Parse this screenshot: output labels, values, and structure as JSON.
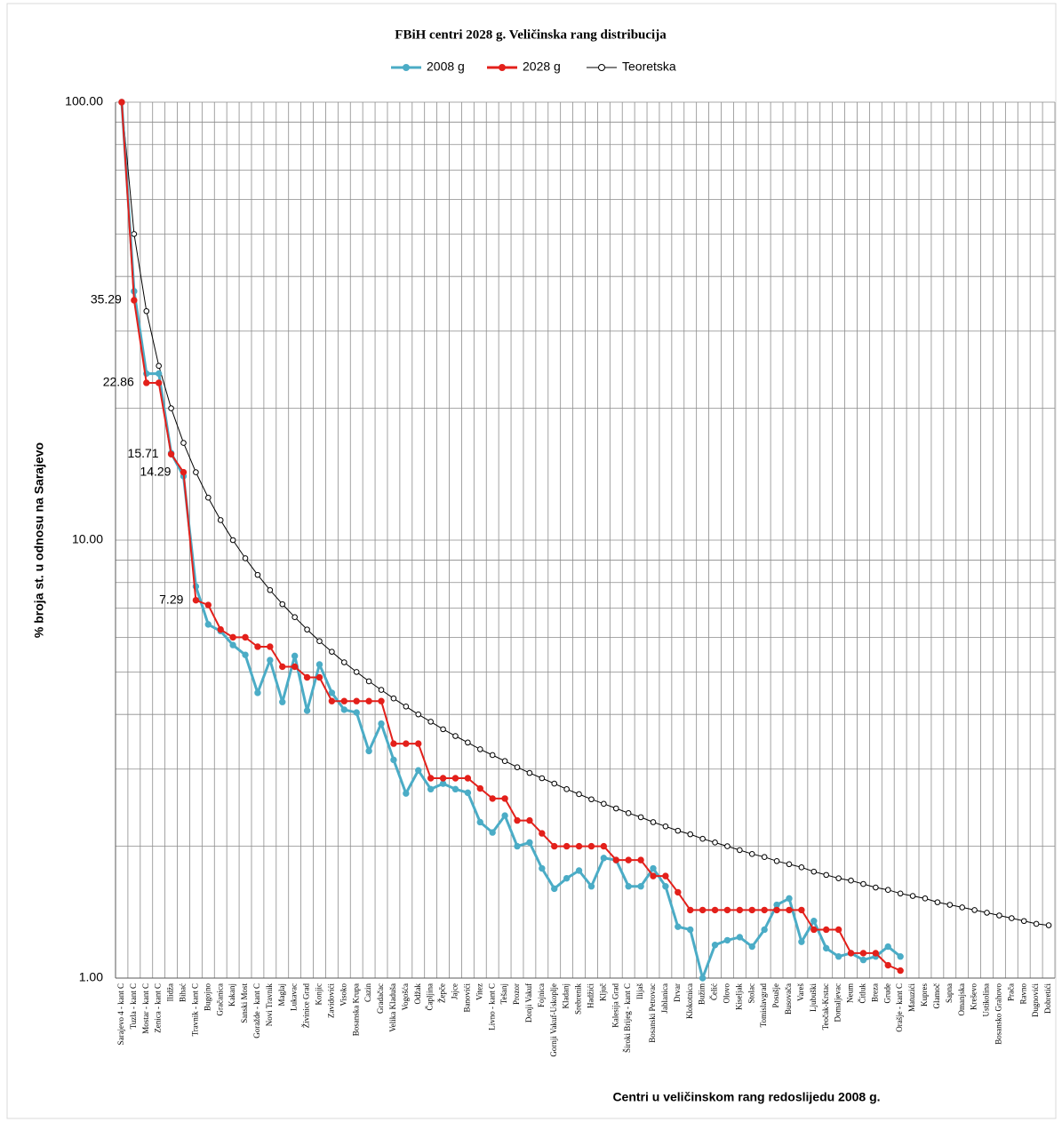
{
  "chart_data": {
    "type": "line",
    "title": "FBiH centri 2028 g. Veličinska rang distribucija",
    "x_label": "Centri u veličinskom rang redoslijedu 2008 g.",
    "y_label": "% broja st. u odnosu na Sarajevo",
    "log_scale": true,
    "grid": true,
    "legend": "top",
    "ylim": [
      1,
      100
    ],
    "yticks": [
      {
        "value": 1,
        "label": "1.00"
      },
      {
        "value": 10,
        "label": "10.00"
      },
      {
        "value": 100,
        "label": "100.00"
      }
    ],
    "categories": [
      "Sarajevo 4 - kant C",
      "Tuzla - kant C",
      "Mostar - kant C",
      "Zenica - kant C",
      "Ilidža",
      "Bihać",
      "Travnik - kant C",
      "Bugojno",
      "Gračanica",
      "Kakanj",
      "Sanski Most",
      "Goražde - kant C",
      "Novi Travnik",
      "Maglaj",
      "Lukavac",
      "Živinice Grad",
      "Konjic",
      "Zavidovići",
      "Visoko",
      "Bosanska Krupa",
      "Cazin",
      "Gradačac",
      "Velika Kladuša",
      "Vogošća",
      "Odžak",
      "Čapljina",
      "Žepče",
      "Jajce",
      "Banovići",
      "Vitez",
      "Livno - kant C",
      "Tešanj",
      "Prozor",
      "Donji Vakuf",
      "Fojnica",
      "Gornji Vakuf-Uskoplje",
      "Kladanj",
      "Srebrenik",
      "Hadžići",
      "Ključ",
      "Kalesija Grad",
      "Široki Brijeg - kant C",
      "Ilijaš",
      "Bosanski Petrovac",
      "Jablanica",
      "Drvar",
      "Klokotnica",
      "Bužim",
      "Čelić",
      "Olovo",
      "Kiseljak",
      "Stolac",
      "Tomislavgrad",
      "Posušje",
      "Busovača",
      "Vareš",
      "Ljubuški",
      "Teočak-Krstac",
      "Domaljevac",
      "Neum",
      "Čitluk",
      "Breza",
      "Grude",
      "Orašje - kant C",
      "Matuzići",
      "Kupres",
      "Glamoč",
      "Sapna",
      "Omanjska",
      "Kreševo",
      "Ustikolina",
      "Bosansko Grahovo",
      "Prača",
      "Ravno",
      "Dugnovići",
      "Dobretići"
    ],
    "series": [
      {
        "name": "2008 g",
        "color": "#4bacc6",
        "values": [
          100,
          37,
          24,
          24,
          15.8,
          14,
          7.84,
          6.42,
          6.2,
          5.76,
          5.47,
          4.48,
          5.32,
          4.27,
          5.44,
          4.08,
          5.2,
          4.48,
          4.1,
          4.04,
          3.3,
          3.81,
          3.15,
          2.64,
          2.98,
          2.7,
          2.78,
          2.7,
          2.65,
          2.27,
          2.15,
          2.35,
          2,
          2.04,
          1.78,
          1.6,
          1.69,
          1.76,
          1.62,
          1.88,
          1.86,
          1.62,
          1.62,
          1.78,
          1.62,
          1.31,
          1.29,
          1,
          1.19,
          1.22,
          1.24,
          1.18,
          1.29,
          1.47,
          1.52,
          1.21,
          1.35,
          1.17,
          1.12,
          1.14,
          1.1,
          1.12,
          1.18,
          1.12,
          null,
          null,
          null,
          null,
          null,
          null,
          null,
          null,
          null,
          null,
          null,
          null
        ]
      },
      {
        "name": "2028 g",
        "color": "#e3201b",
        "values": [
          100,
          35.29,
          22.86,
          22.86,
          15.71,
          14.29,
          7.29,
          7.11,
          6.25,
          6,
          6,
          5.71,
          5.71,
          5.14,
          5.14,
          4.86,
          4.86,
          4.29,
          4.29,
          4.29,
          4.29,
          4.29,
          3.43,
          3.43,
          3.43,
          2.86,
          2.86,
          2.86,
          2.86,
          2.71,
          2.57,
          2.57,
          2.29,
          2.29,
          2.14,
          2,
          2,
          2,
          2,
          2,
          1.86,
          1.86,
          1.86,
          1.71,
          1.71,
          1.57,
          1.43,
          1.43,
          1.43,
          1.43,
          1.43,
          1.43,
          1.43,
          1.43,
          1.43,
          1.43,
          1.29,
          1.29,
          1.29,
          1.14,
          1.14,
          1.14,
          1.07,
          1.04,
          null,
          null,
          null,
          null,
          null,
          null,
          null,
          null,
          null,
          null,
          null,
          null
        ],
        "value_labels": [
          null,
          "35.29",
          "22.86",
          null,
          "15.71",
          "14.29",
          "7.29",
          null,
          null,
          null,
          null,
          null,
          null,
          null,
          null,
          null,
          null,
          null,
          null,
          null,
          null,
          null,
          null,
          null,
          null,
          null,
          null,
          null,
          null,
          null,
          null,
          null,
          null,
          null,
          null,
          null,
          null,
          null,
          null,
          null,
          null,
          null,
          null,
          null,
          null,
          null,
          null,
          null,
          null,
          null,
          null,
          null,
          null,
          null,
          null,
          null,
          null,
          null,
          null,
          null,
          null,
          null,
          null,
          null,
          null,
          null,
          null,
          null,
          null,
          null,
          null,
          null,
          null,
          null,
          null,
          null
        ]
      },
      {
        "name": "Teoretska",
        "color": "#000000",
        "values": [
          100,
          50,
          33.33,
          25,
          20,
          16.67,
          14.29,
          12.5,
          11.11,
          10,
          9.09,
          8.33,
          7.69,
          7.14,
          6.67,
          6.25,
          5.88,
          5.56,
          5.26,
          5,
          4.76,
          4.55,
          4.35,
          4.17,
          4,
          3.85,
          3.7,
          3.57,
          3.45,
          3.33,
          3.23,
          3.13,
          3.03,
          2.94,
          2.86,
          2.78,
          2.7,
          2.63,
          2.56,
          2.5,
          2.44,
          2.38,
          2.33,
          2.27,
          2.22,
          2.17,
          2.13,
          2.08,
          2.04,
          2,
          1.96,
          1.92,
          1.89,
          1.85,
          1.82,
          1.79,
          1.75,
          1.72,
          1.69,
          1.67,
          1.64,
          1.61,
          1.59,
          1.56,
          1.54,
          1.52,
          1.49,
          1.47,
          1.45,
          1.43,
          1.41,
          1.39,
          1.37,
          1.35,
          1.33,
          1.32
        ]
      }
    ]
  }
}
